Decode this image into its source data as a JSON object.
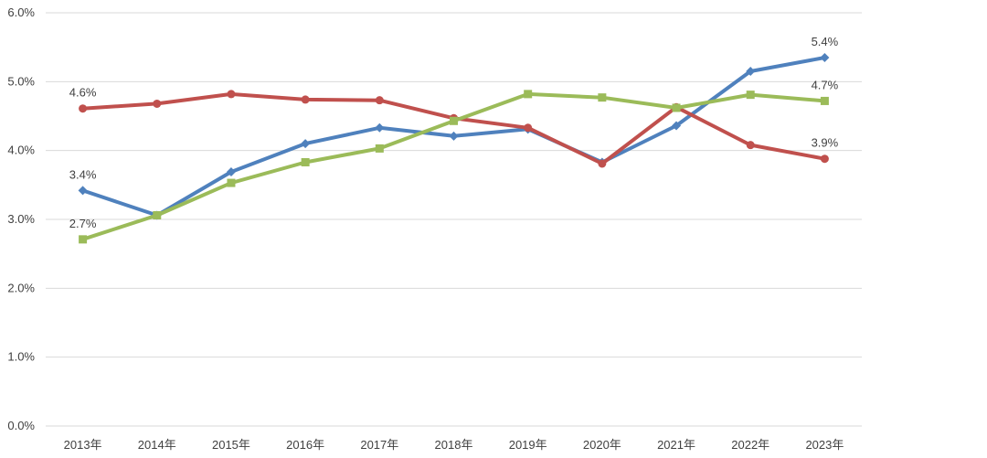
{
  "chart_data": {
    "type": "line",
    "x": [
      "2013年",
      "2014年",
      "2015年",
      "2016年",
      "2017年",
      "2018年",
      "2019年",
      "2020年",
      "2021年",
      "2022年",
      "2023年"
    ],
    "ylim": [
      0,
      6
    ],
    "yticks": [
      "0.0%",
      "1.0%",
      "2.0%",
      "3.0%",
      "4.0%",
      "5.0%",
      "6.0%"
    ],
    "grid": true,
    "legend": "none",
    "series": [
      {
        "color": "#4F81BD",
        "marker": "diamond",
        "values": [
          3.42,
          3.06,
          3.69,
          4.1,
          4.33,
          4.21,
          4.31,
          3.83,
          4.36,
          5.15,
          5.35
        ],
        "labels": [
          {
            "index": 0,
            "text": "3.4%"
          },
          {
            "index": 10,
            "text": "5.4%"
          }
        ]
      },
      {
        "color": "#C0504D",
        "marker": "circle",
        "values": [
          4.61,
          4.68,
          4.82,
          4.74,
          4.73,
          4.47,
          4.33,
          3.81,
          4.63,
          4.08,
          3.88
        ],
        "labels": [
          {
            "index": 0,
            "text": "4.6%"
          },
          {
            "index": 10,
            "text": "3.9%"
          }
        ]
      },
      {
        "color": "#9BBB59",
        "marker": "square",
        "values": [
          2.71,
          3.06,
          3.53,
          3.83,
          4.03,
          4.43,
          4.82,
          4.77,
          4.62,
          4.81,
          4.72
        ],
        "labels": [
          {
            "index": 0,
            "text": "2.7%"
          },
          {
            "index": 10,
            "text": "4.7%"
          }
        ]
      }
    ]
  }
}
